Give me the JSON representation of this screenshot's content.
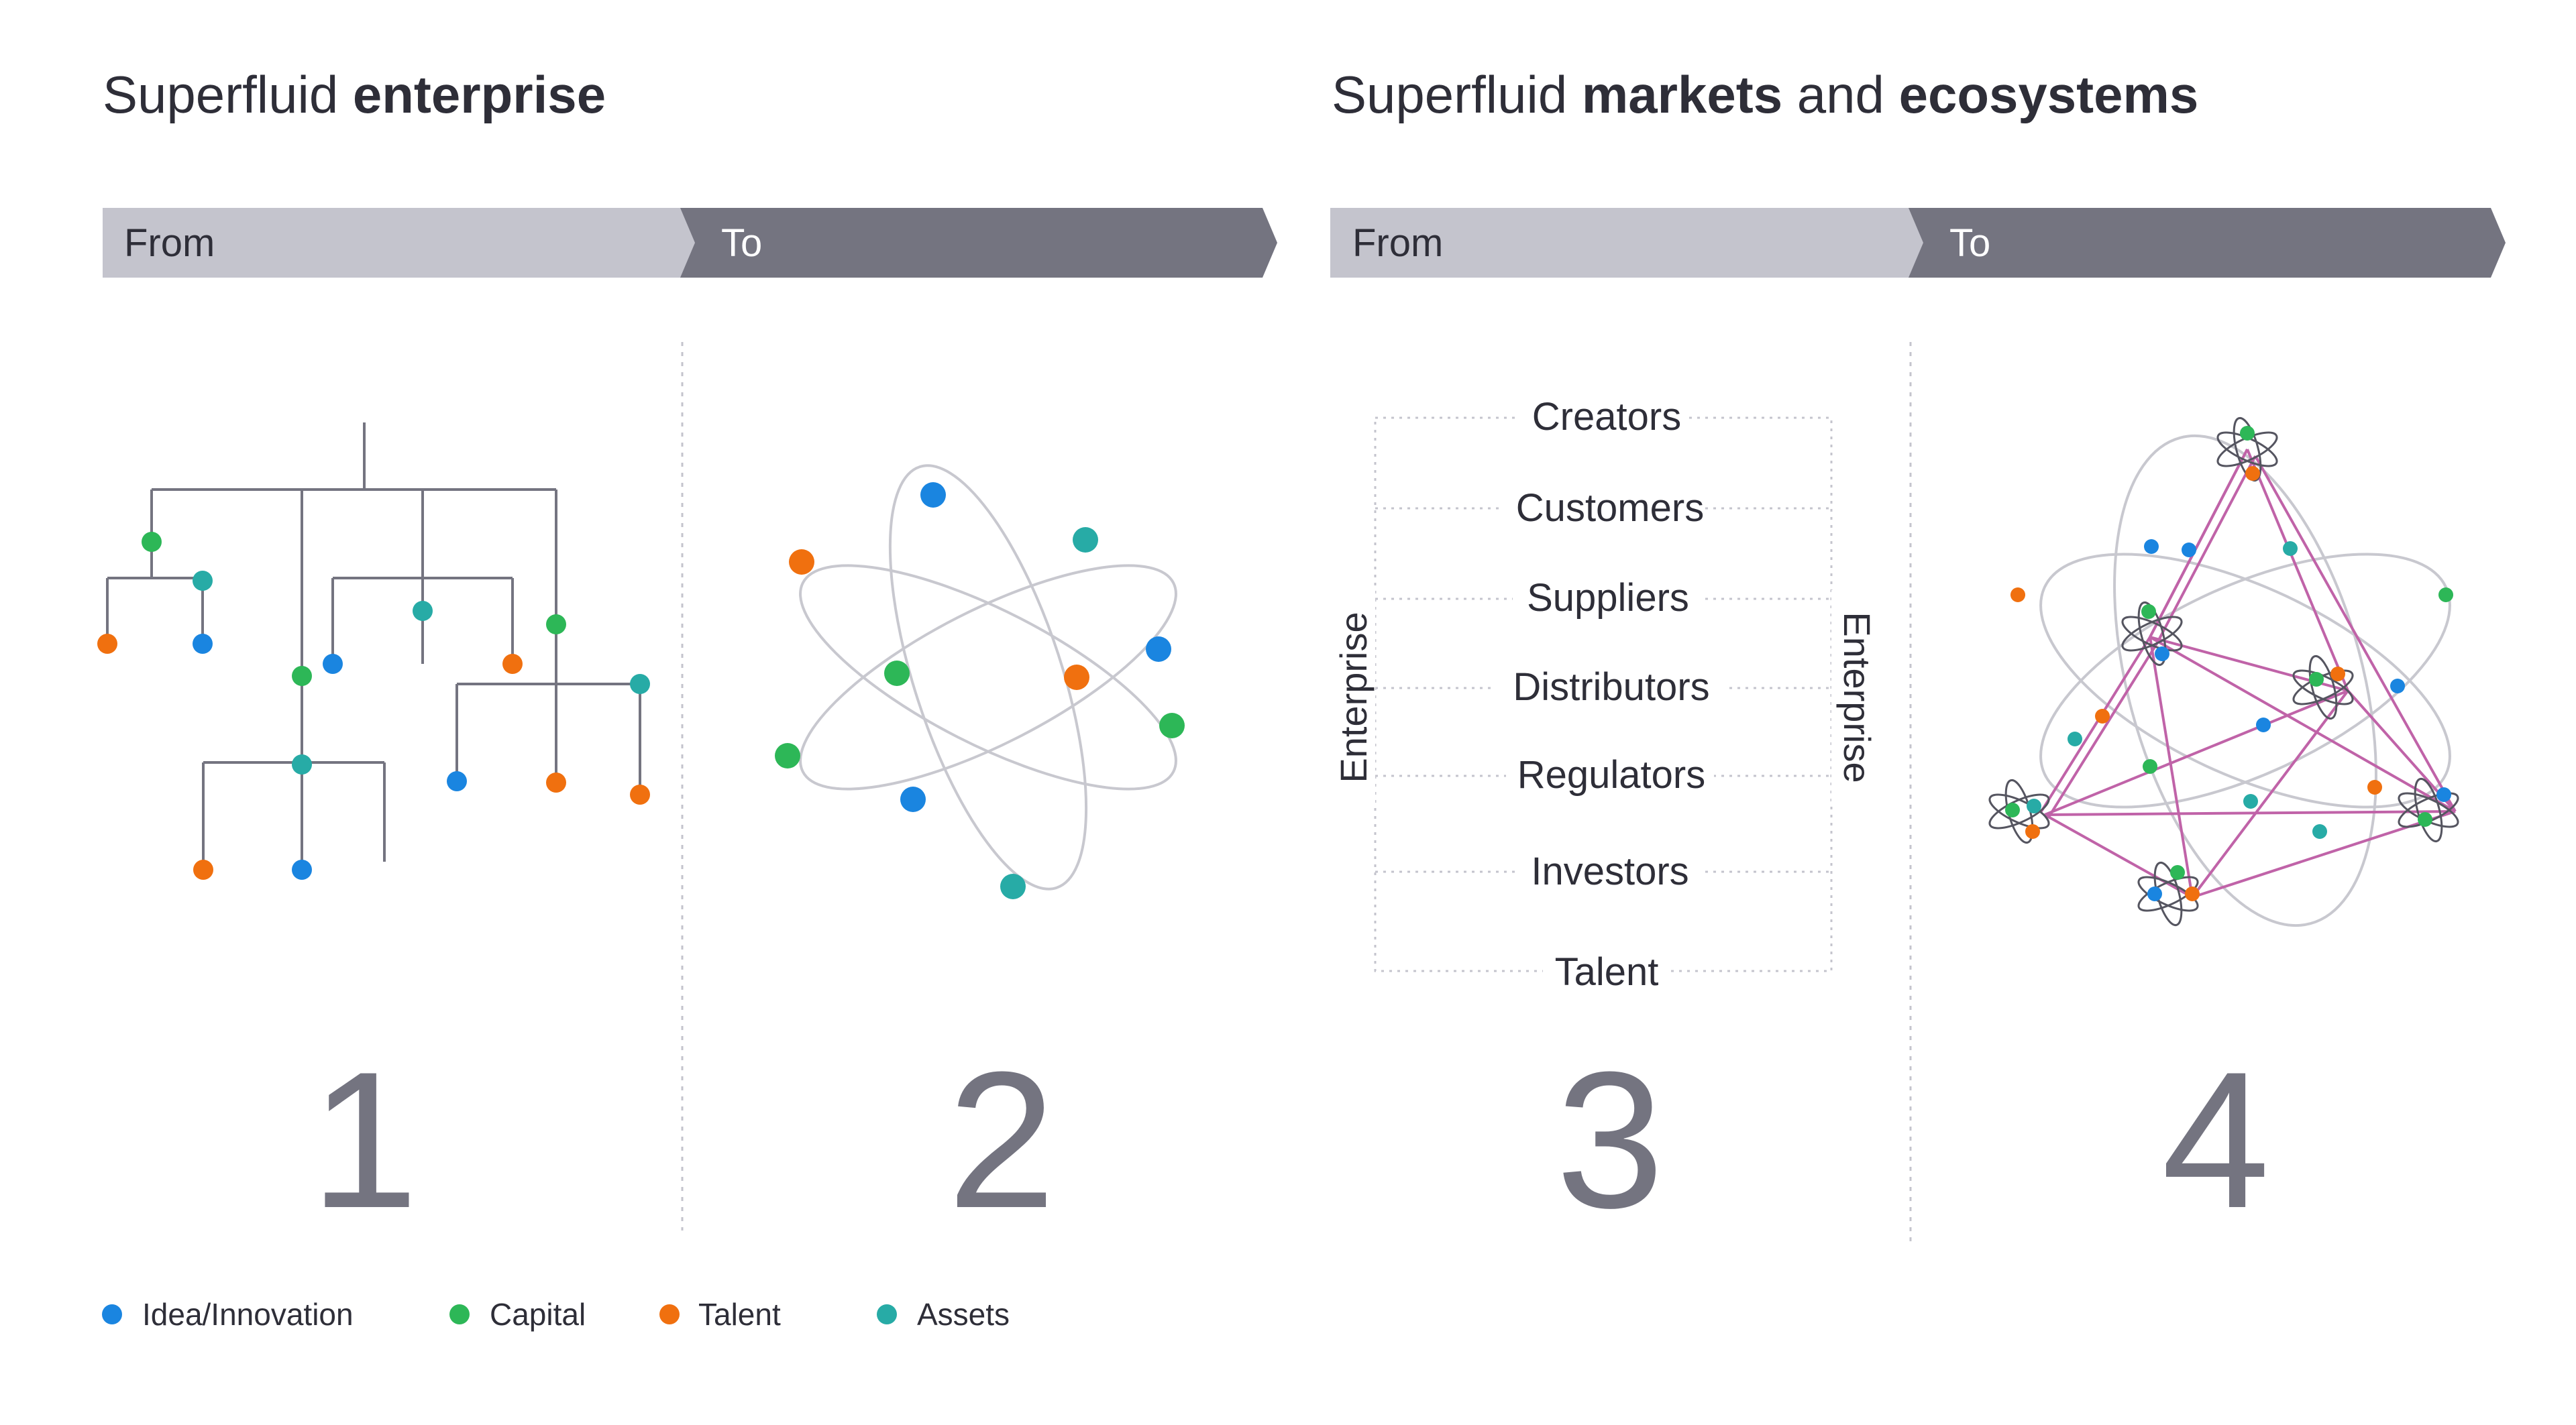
{
  "sections": [
    {
      "title_regular": "Superfluid ",
      "title_bold": "enterprise",
      "from_label": "From",
      "to_label": "To"
    },
    {
      "title_regular_1": "Superfluid ",
      "title_bold_1": "markets",
      "title_regular_2": " and ",
      "title_bold_2": "ecosystems",
      "from_label": "From",
      "to_label": "To"
    }
  ],
  "panels": [
    {
      "number": "1",
      "description": "hierarchical org tree"
    },
    {
      "number": "2",
      "description": "atom-like fluid structure"
    },
    {
      "number": "3",
      "description": "enterprise linked to stakeholders"
    },
    {
      "number": "4",
      "description": "network of atoms"
    }
  ],
  "stakeholders": [
    "Creators",
    "Customers",
    "Suppliers",
    "Distributors",
    "Regulators",
    "Investors",
    "Talent"
  ],
  "side_label_left": "Enterprise",
  "side_label_right": "Enterprise",
  "legend": [
    {
      "label": "Idea/Innovation",
      "color": "#1a85e0"
    },
    {
      "label": "Capital",
      "color": "#2db757"
    },
    {
      "label": "Talent",
      "color": "#f0700f"
    },
    {
      "label": "Assets",
      "color": "#27aba6"
    }
  ],
  "colors": {
    "band_from": "#c4c4cd",
    "band_to": "#747480",
    "tree_line": "#747480",
    "orbit": "#c8c8cf",
    "network_line": "#c063a8",
    "divider": "#c4c4cd"
  }
}
